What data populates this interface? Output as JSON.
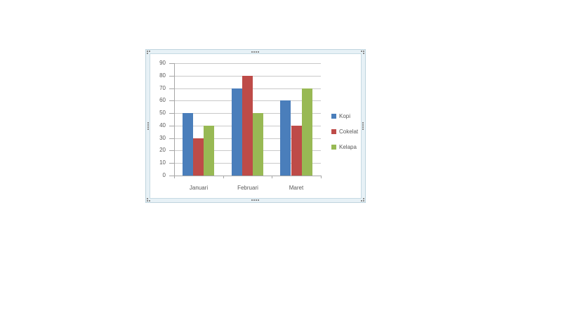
{
  "page": {
    "background_color": "#ffffff"
  },
  "selection_frame": {
    "band_color": "#e7f1f6",
    "border_color": "#bfd4de",
    "handle_dot_color": "#8a8a8a",
    "handles": [
      "top-left",
      "top-center",
      "top-right",
      "middle-left",
      "middle-right",
      "bottom-left",
      "bottom-center",
      "bottom-right"
    ]
  },
  "chart_style": {
    "plot_background": "#ffffff",
    "gridline_color": "#c9c9c9",
    "axis_line_color": "#a6a6a6",
    "text_color": "#595959"
  },
  "chart_data": {
    "type": "bar",
    "title": "",
    "xlabel": "",
    "ylabel": "",
    "categories": [
      "Januari",
      "Februari",
      "Maret"
    ],
    "series": [
      {
        "name": "Kopi",
        "color": "#4a7ebb",
        "values": [
          50,
          70,
          60
        ]
      },
      {
        "name": "Cokelat",
        "color": "#be4b48",
        "values": [
          30,
          80,
          40
        ]
      },
      {
        "name": "Kelapa",
        "color": "#98b954",
        "values": [
          40,
          50,
          70
        ]
      }
    ],
    "ylim": [
      0,
      90
    ],
    "ytick_step": 10,
    "ytick_labels": [
      "0",
      "10",
      "20",
      "30",
      "40",
      "50",
      "60",
      "70",
      "80",
      "90"
    ],
    "grid": true,
    "legend_position": "right"
  }
}
